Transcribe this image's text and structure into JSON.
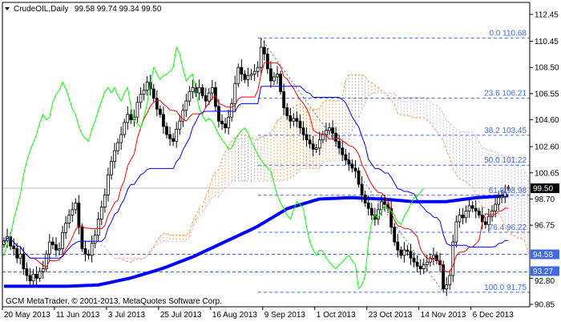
{
  "header": {
    "symbol": "CrudeOIL,Daily",
    "ohlc": "99.58 99.74 99.34 99.50"
  },
  "copyright": "GCM MetaTrader, © 2001-2013, MetaQuotes Software Corp.",
  "colors": {
    "background": "#ffffff",
    "candle_up": "#ffffff",
    "candle_down": "#000000",
    "tenkan": "#ff0000",
    "kijun": "#0000ff",
    "chikou": "#00ff00",
    "senkou_a": "#f4a460",
    "senkou_b": "#d8bfd8",
    "ma": "#0000ff",
    "fibo": "#4169e1",
    "level_label_bg": "#4169e1",
    "bid_label_bg": "#000000",
    "bid_line": "#c0c0c0"
  },
  "chart_data": {
    "type": "candlestick",
    "title": "CrudeOIL,Daily",
    "indicators": [
      "Ichimoku Kinko Hyo",
      "Moving Average (thick blue)",
      "Fibonacci Retracement"
    ],
    "ylim": [
      90.7,
      113.35
    ],
    "y_ticks": [
      "112.45",
      "110.45",
      "108.50",
      "106.55",
      "104.60",
      "102.60",
      "100.65",
      "98.70",
      "96.75",
      "92.80",
      "90.85"
    ],
    "x_labels": [
      "20 May 2013",
      "11 Jun 2013",
      "3 Jul 2013",
      "25 Jul 2013",
      "16 Aug 2013",
      "9 Sep 2013",
      "1 Oct 2013",
      "23 Oct 2013",
      "14 Nov 2013",
      "6 Dec 2013"
    ],
    "last_bar": {
      "open": 99.58,
      "high": 99.74,
      "low": 99.34,
      "close": 99.5
    },
    "close": [
      95.6,
      95.9,
      95.2,
      95.0,
      94.3,
      94.6,
      93.5,
      93.0,
      92.6,
      93.1,
      92.8,
      93.3,
      93.5,
      94.6,
      95.5,
      95.3,
      94.9,
      95.0,
      96.2,
      96.9,
      97.5,
      97.9,
      98.4,
      96.6,
      95.0,
      94.6,
      94.5,
      95.4,
      96.0,
      97.2,
      98.1,
      99.0,
      100.5,
      101.5,
      102.3,
      102.9,
      103.5,
      104.4,
      105.0,
      104.6,
      104.8,
      105.9,
      106.5,
      106.8,
      107.4,
      106.9,
      106.2,
      105.4,
      105.0,
      104.1,
      103.5,
      103.2,
      103.0,
      103.9,
      104.5,
      105.3,
      106.0,
      106.7,
      107.0,
      106.6,
      107.0,
      106.4,
      106.0,
      106.6,
      107.0,
      105.6,
      104.5,
      104.3,
      104.0,
      104.8,
      105.8,
      107.3,
      108.5,
      108.0,
      107.6,
      107.9,
      108.0,
      108.2,
      108.5,
      110.0,
      109.5,
      108.4,
      107.5,
      107.8,
      108.0,
      106.7,
      105.5,
      104.9,
      104.5,
      104.7,
      104.5,
      104.0,
      103.5,
      103.1,
      102.8,
      102.4,
      102.5,
      103.1,
      103.5,
      103.8,
      104.0,
      103.6,
      103.0,
      102.5,
      102.0,
      101.6,
      101.3,
      101.0,
      100.8,
      99.8,
      99.0,
      98.4,
      98.0,
      97.5,
      97.2,
      97.9,
      98.5,
      98.3,
      98.0,
      96.6,
      95.5,
      94.9,
      94.5,
      94.9,
      94.8,
      94.3,
      94.0,
      93.7,
      93.5,
      93.8,
      94.0,
      94.3,
      94.5,
      94.1,
      93.8,
      92.0,
      92.3,
      93.0,
      95.5,
      97.0,
      97.5,
      97.3,
      97.8,
      98.2,
      98.0,
      97.8,
      97.5,
      97.0,
      96.8,
      97.4,
      97.8,
      98.3,
      98.8,
      98.9,
      99.2,
      99.5
    ],
    "moving_average": [
      92.2,
      92.2,
      92.2,
      92.3,
      92.8,
      93.5,
      94.4,
      95.5,
      96.6,
      98.0,
      98.7,
      98.8,
      98.7,
      98.5,
      98.5,
      98.8,
      98.95
    ],
    "fibonacci": [
      {
        "label": "0.0 110.68",
        "level": 110.68
      },
      {
        "label": "23.6 106.21",
        "level": 106.21
      },
      {
        "label": "38.2 103.45",
        "level": 103.45
      },
      {
        "label": "50.0 101.22",
        "level": 101.22
      },
      {
        "label": "61.8 98.98",
        "level": 98.98
      },
      {
        "label": "76.4 96.22",
        "level": 96.22
      },
      {
        "label": "100.0 91.75",
        "level": 91.75
      }
    ],
    "horizontal_levels": [
      {
        "label": "94.58",
        "level": 94.58
      },
      {
        "label": "93.27",
        "level": 93.27
      }
    ],
    "bid": {
      "label": "99.50",
      "level": 99.5
    }
  }
}
